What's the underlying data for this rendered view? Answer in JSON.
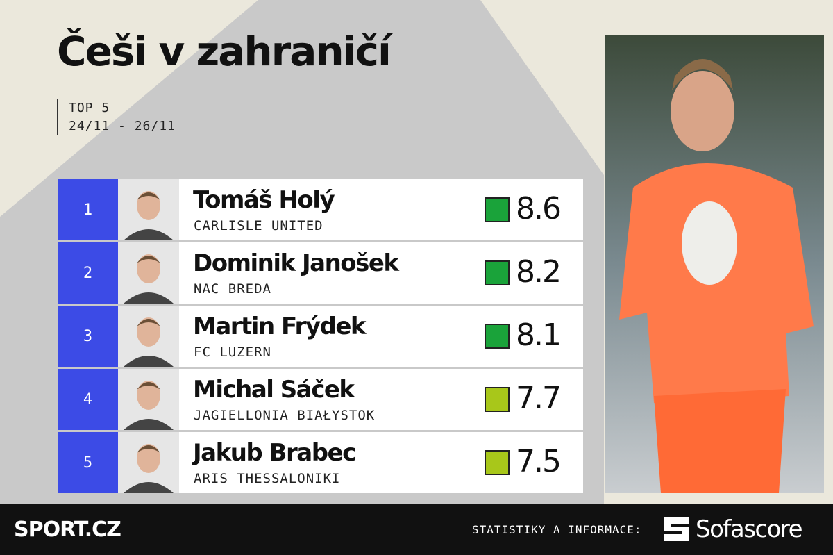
{
  "header": {
    "title": "Češi v zahraničí",
    "subtitle": [
      "TOP 5",
      "24/11 - 26/11"
    ]
  },
  "rows": [
    {
      "rank": "1",
      "name": "Tomáš Holý",
      "club": "CARLISLE UNITED",
      "rating": 8.6,
      "color": "#1aa33a"
    },
    {
      "rank": "2",
      "name": "Dominik Janošek",
      "club": "NAC BREDA",
      "rating": 8.2,
      "color": "#1aa33a"
    },
    {
      "rank": "3",
      "name": "Martin Frýdek",
      "club": "FC LUZERN",
      "rating": 8.1,
      "color": "#1aa33a"
    },
    {
      "rank": "4",
      "name": "Michal Sáček",
      "club": "JAGIELLONIA BIAŁYSTOK",
      "rating": 7.7,
      "color": "#a8c71a"
    },
    {
      "rank": "5",
      "name": "Jakub Brabec",
      "club": "ARIS THESSALONIKI",
      "rating": 7.5,
      "color": "#a8c71a"
    }
  ],
  "footer": {
    "brand": "SPORT.CZ",
    "credit_label": "STATISTIKY A INFORMACE:",
    "partner": "Sofascore"
  }
}
